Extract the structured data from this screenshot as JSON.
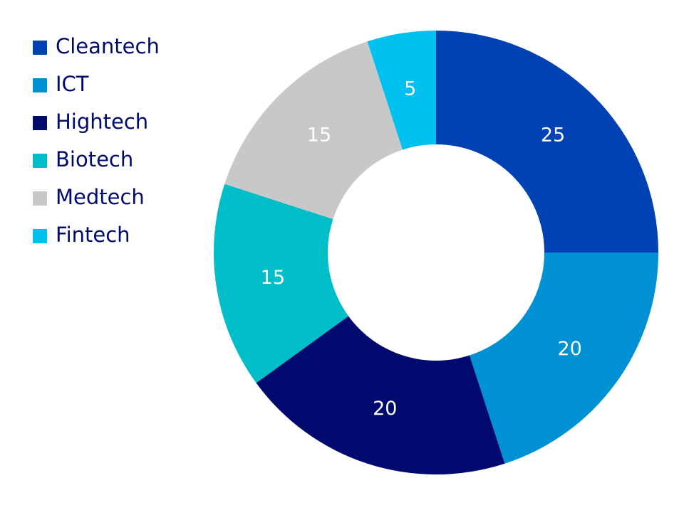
{
  "chart_data": {
    "type": "donut",
    "categories": [
      "Cleantech",
      "ICT",
      "Hightech",
      "Biotech",
      "Medtech",
      "Fintech"
    ],
    "values": [
      25,
      20,
      20,
      15,
      15,
      5
    ],
    "colors": [
      "#0041b4",
      "#0090d4",
      "#000a6e",
      "#00bec8",
      "#c8c8c8",
      "#00c0f0"
    ],
    "legend": "top-left"
  }
}
